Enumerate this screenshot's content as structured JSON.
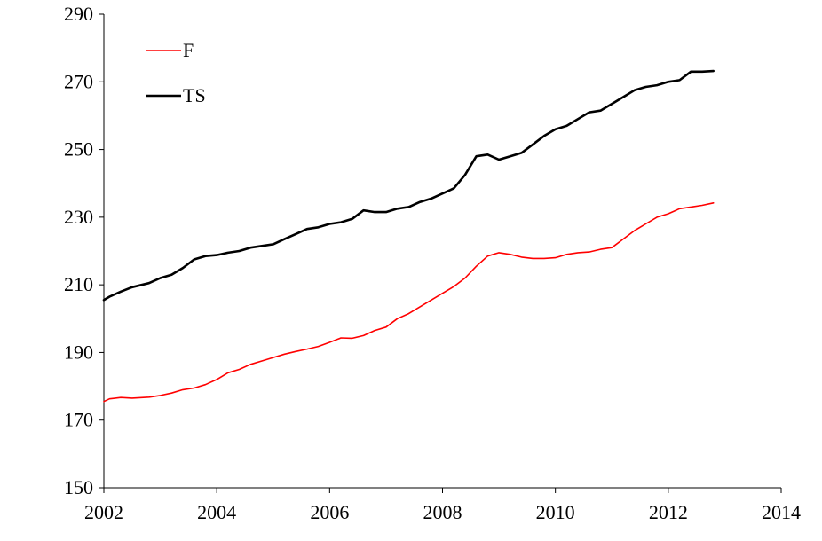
{
  "chart_data": {
    "type": "line",
    "title": "",
    "xlabel": "",
    "ylabel": "",
    "xlim": [
      2002,
      2014
    ],
    "ylim": [
      150,
      290
    ],
    "x_ticks": [
      2002,
      2004,
      2006,
      2008,
      2010,
      2012,
      2014
    ],
    "y_ticks": [
      150,
      170,
      190,
      210,
      230,
      250,
      270,
      290
    ],
    "grid": false,
    "legend_position": "top-left",
    "series": [
      {
        "name": "F",
        "color": "#ff0000",
        "points": [
          [
            2002.0,
            175.5
          ],
          [
            2002.1,
            176.3
          ],
          [
            2002.3,
            176.7
          ],
          [
            2002.5,
            176.5
          ],
          [
            2002.8,
            176.8
          ],
          [
            2003.0,
            177.3
          ],
          [
            2003.2,
            178.0
          ],
          [
            2003.4,
            179.0
          ],
          [
            2003.6,
            179.5
          ],
          [
            2003.8,
            180.5
          ],
          [
            2004.0,
            182.0
          ],
          [
            2004.2,
            184.0
          ],
          [
            2004.4,
            185.0
          ],
          [
            2004.6,
            186.5
          ],
          [
            2004.8,
            187.5
          ],
          [
            2005.0,
            188.5
          ],
          [
            2005.2,
            189.5
          ],
          [
            2005.4,
            190.3
          ],
          [
            2005.6,
            191.0
          ],
          [
            2005.8,
            191.8
          ],
          [
            2006.0,
            193.0
          ],
          [
            2006.2,
            194.3
          ],
          [
            2006.4,
            194.2
          ],
          [
            2006.6,
            195.0
          ],
          [
            2006.8,
            196.5
          ],
          [
            2007.0,
            197.5
          ],
          [
            2007.2,
            200.0
          ],
          [
            2007.4,
            201.5
          ],
          [
            2007.6,
            203.5
          ],
          [
            2007.8,
            205.5
          ],
          [
            2008.0,
            207.5
          ],
          [
            2008.2,
            209.5
          ],
          [
            2008.4,
            212.0
          ],
          [
            2008.6,
            215.5
          ],
          [
            2008.8,
            218.5
          ],
          [
            2009.0,
            219.5
          ],
          [
            2009.2,
            219.0
          ],
          [
            2009.4,
            218.2
          ],
          [
            2009.6,
            217.8
          ],
          [
            2009.8,
            217.8
          ],
          [
            2010.0,
            218.0
          ],
          [
            2010.2,
            219.0
          ],
          [
            2010.4,
            219.5
          ],
          [
            2010.6,
            219.7
          ],
          [
            2010.8,
            220.5
          ],
          [
            2011.0,
            221.0
          ],
          [
            2011.2,
            223.5
          ],
          [
            2011.4,
            226.0
          ],
          [
            2011.6,
            228.0
          ],
          [
            2011.8,
            230.0
          ],
          [
            2012.0,
            231.0
          ],
          [
            2012.2,
            232.5
          ],
          [
            2012.4,
            233.0
          ],
          [
            2012.6,
            233.5
          ],
          [
            2012.8,
            234.2
          ]
        ]
      },
      {
        "name": "TS",
        "color": "#000000",
        "points": [
          [
            2002.0,
            205.5
          ],
          [
            2002.1,
            206.5
          ],
          [
            2002.3,
            208.0
          ],
          [
            2002.5,
            209.3
          ],
          [
            2002.8,
            210.5
          ],
          [
            2003.0,
            212.0
          ],
          [
            2003.2,
            213.0
          ],
          [
            2003.4,
            215.0
          ],
          [
            2003.6,
            217.5
          ],
          [
            2003.8,
            218.5
          ],
          [
            2004.0,
            218.8
          ],
          [
            2004.2,
            219.5
          ],
          [
            2004.4,
            220.0
          ],
          [
            2004.6,
            221.0
          ],
          [
            2004.8,
            221.5
          ],
          [
            2005.0,
            222.0
          ],
          [
            2005.2,
            223.5
          ],
          [
            2005.4,
            225.0
          ],
          [
            2005.6,
            226.5
          ],
          [
            2005.8,
            227.0
          ],
          [
            2006.0,
            228.0
          ],
          [
            2006.2,
            228.5
          ],
          [
            2006.4,
            229.5
          ],
          [
            2006.6,
            232.0
          ],
          [
            2006.8,
            231.5
          ],
          [
            2007.0,
            231.5
          ],
          [
            2007.2,
            232.5
          ],
          [
            2007.4,
            233.0
          ],
          [
            2007.6,
            234.5
          ],
          [
            2007.8,
            235.5
          ],
          [
            2008.0,
            237.0
          ],
          [
            2008.2,
            238.5
          ],
          [
            2008.4,
            242.5
          ],
          [
            2008.6,
            248.0
          ],
          [
            2008.8,
            248.5
          ],
          [
            2009.0,
            247.0
          ],
          [
            2009.2,
            248.0
          ],
          [
            2009.4,
            249.0
          ],
          [
            2009.6,
            251.5
          ],
          [
            2009.8,
            254.0
          ],
          [
            2010.0,
            256.0
          ],
          [
            2010.2,
            257.0
          ],
          [
            2010.4,
            259.0
          ],
          [
            2010.6,
            261.0
          ],
          [
            2010.8,
            261.5
          ],
          [
            2011.0,
            263.5
          ],
          [
            2011.2,
            265.5
          ],
          [
            2011.4,
            267.5
          ],
          [
            2011.6,
            268.5
          ],
          [
            2011.8,
            269.0
          ],
          [
            2012.0,
            270.0
          ],
          [
            2012.2,
            270.5
          ],
          [
            2012.4,
            273.0
          ],
          [
            2012.6,
            273.0
          ],
          [
            2012.8,
            273.2
          ]
        ]
      }
    ]
  }
}
